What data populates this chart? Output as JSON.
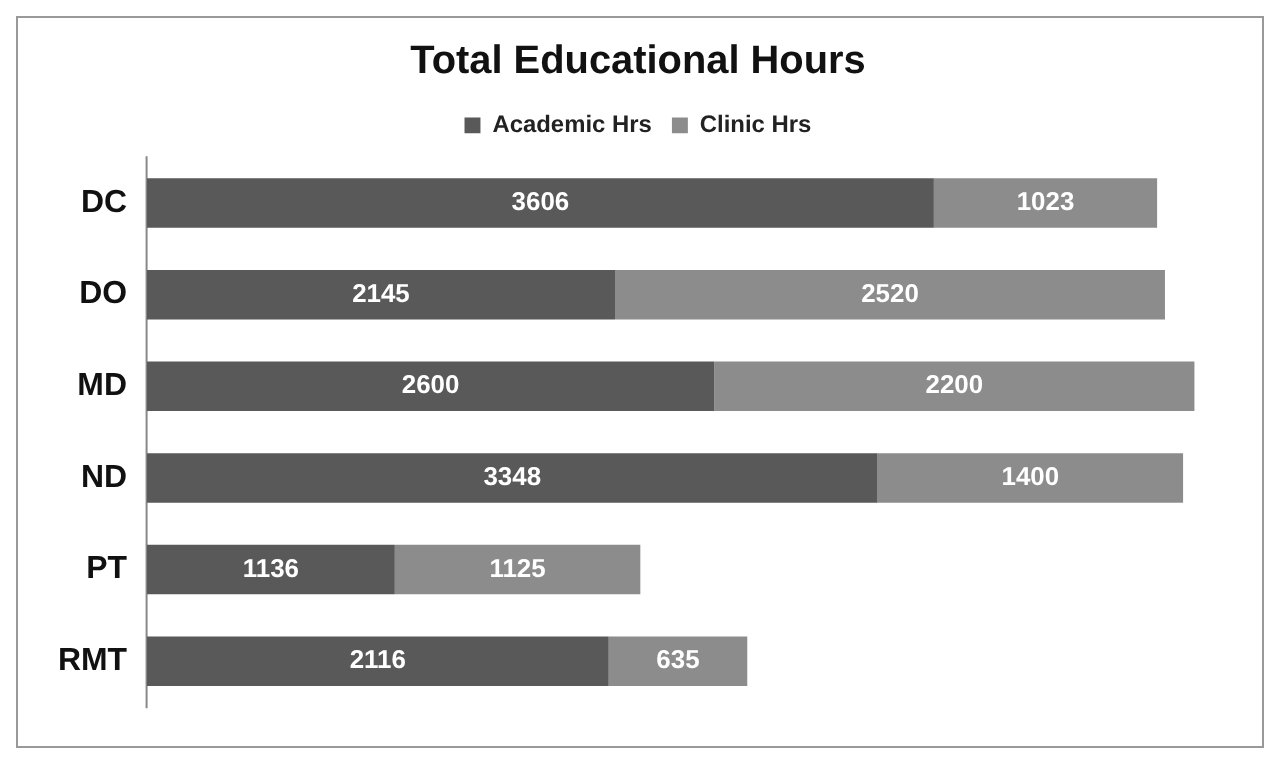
{
  "chart_data": {
    "type": "bar",
    "orientation": "horizontal",
    "stacked": true,
    "title": "Total Educational Hours",
    "categories": [
      "DC",
      "DO",
      "MD",
      "ND",
      "PT",
      "RMT"
    ],
    "series": [
      {
        "name": "Academic Hrs",
        "color": "#595959",
        "values": [
          3606,
          2145,
          2600,
          3348,
          1136,
          2116
        ]
      },
      {
        "name": "Clinic Hrs",
        "color": "#8c8c8c",
        "values": [
          1023,
          2520,
          2200,
          1400,
          1125,
          635
        ]
      }
    ],
    "tick_labels": "y",
    "grid": false,
    "legend": "top",
    "data_labels": true
  }
}
